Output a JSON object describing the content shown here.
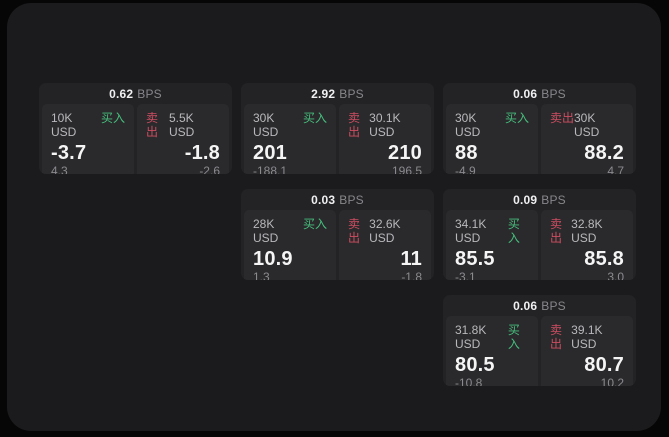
{
  "labels": {
    "bps_unit": "BPS",
    "buy": "买入",
    "sell": "卖出"
  },
  "colors": {
    "background": "#060606",
    "window_bg": "#1b1b1d",
    "card_bg": "#232325",
    "tile_bg": "#2a2a2c",
    "buy_green": "#46be7d",
    "sell_red": "#cc4d61",
    "price_text": "#f5f5f6",
    "muted_text": "#8b8b90"
  },
  "cards": [
    {
      "bps": "0.62",
      "buy": {
        "size": "10K USD",
        "price": "-3.7",
        "delta": "4.3"
      },
      "sell": {
        "size": "5.5K USD",
        "price": "-1.8",
        "delta": "-2.6"
      }
    },
    {
      "bps": "2.92",
      "buy": {
        "size": "30K USD",
        "price": "201",
        "delta": "-188.1"
      },
      "sell": {
        "size": "30.1K USD",
        "price": "210",
        "delta": "196.5"
      }
    },
    {
      "bps": "0.06",
      "buy": {
        "size": "30K USD",
        "price": "88",
        "delta": "-4.9"
      },
      "sell": {
        "size": "30K USD",
        "price": "88.2",
        "delta": "4.7"
      }
    },
    {
      "bps": "0.03",
      "buy": {
        "size": "28K USD",
        "price": "10.9",
        "delta": "1.3"
      },
      "sell": {
        "size": "32.6K USD",
        "price": "11",
        "delta": "-1.8"
      }
    },
    {
      "bps": "0.09",
      "buy": {
        "size": "34.1K USD",
        "price": "85.5",
        "delta": "-3.1"
      },
      "sell": {
        "size": "32.8K USD",
        "price": "85.8",
        "delta": "3.0"
      }
    },
    {
      "bps": "0.06",
      "buy": {
        "size": "31.8K USD",
        "price": "80.5",
        "delta": "-10.8"
      },
      "sell": {
        "size": "39.1K USD",
        "price": "80.7",
        "delta": "10.2"
      }
    }
  ]
}
